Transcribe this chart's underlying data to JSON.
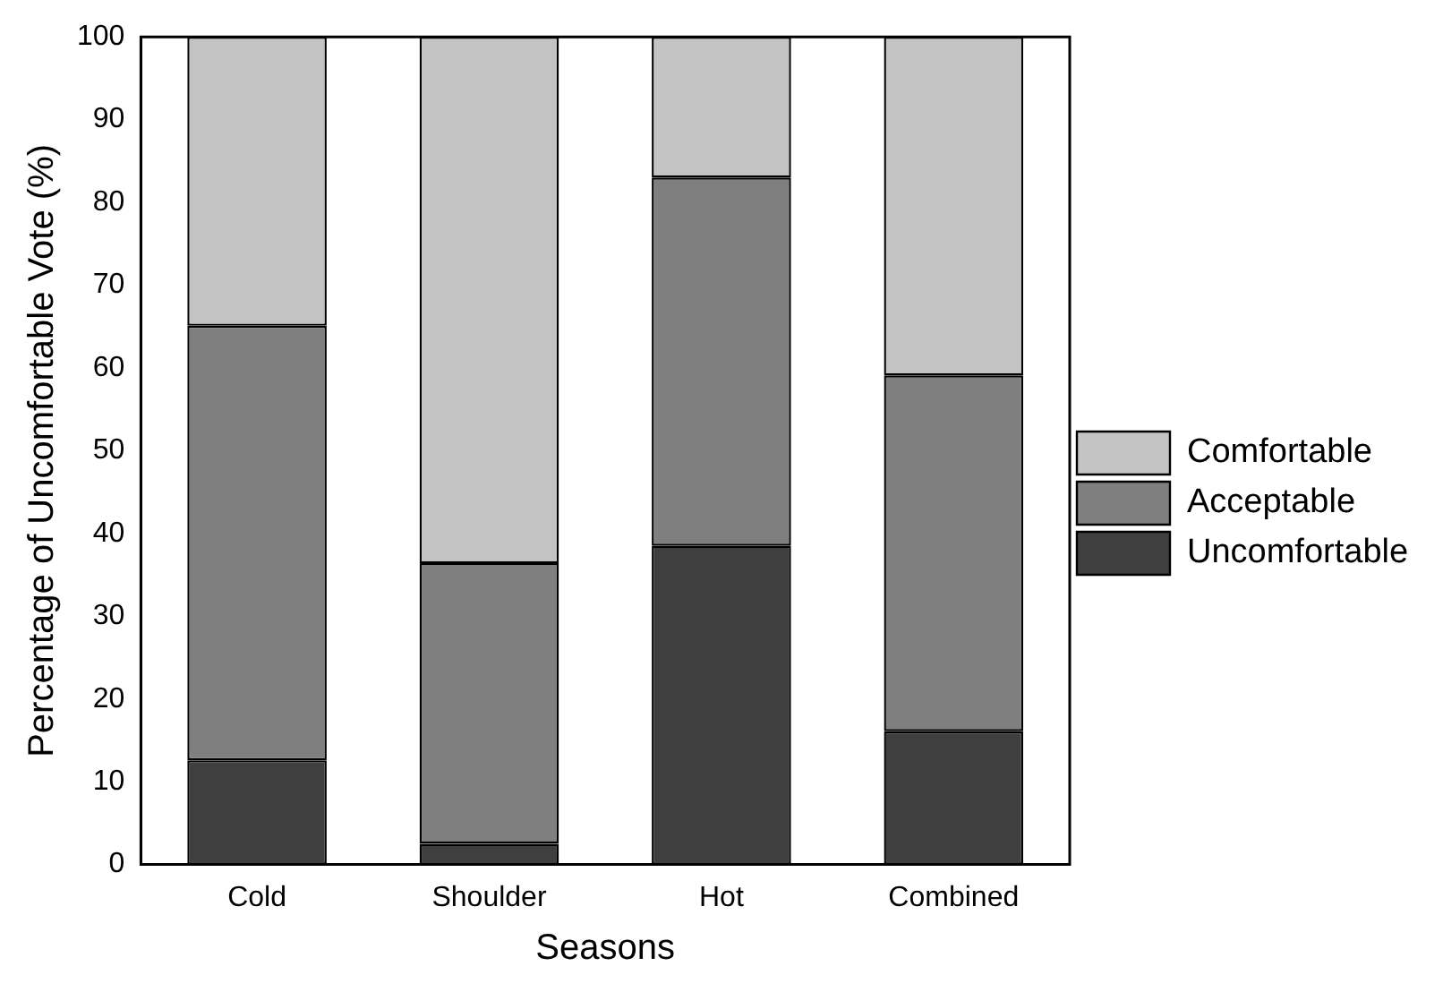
{
  "chart_data": {
    "type": "bar",
    "stacked": true,
    "xlabel": "Seasons",
    "ylabel": "Percentage of Uncomfortable Vote (%)",
    "categories": [
      "Cold",
      "Shoulder",
      "Hot",
      "Combined"
    ],
    "series": [
      {
        "name": "Uncomfortable",
        "color": "#3f3f3f",
        "values": [
          12.6,
          2.5,
          38.5,
          16.1
        ]
      },
      {
        "name": "Acceptable",
        "color": "#7f7f7f",
        "values": [
          52.5,
          33.9,
          44.5,
          43.0
        ]
      },
      {
        "name": "Comfortable",
        "color": "#c3c3c3",
        "values": [
          34.9,
          63.6,
          17.0,
          40.9
        ]
      }
    ],
    "ylim": [
      0,
      100
    ],
    "yticks": [
      0,
      10,
      20,
      30,
      40,
      50,
      60,
      70,
      80,
      90,
      100
    ],
    "grid": false,
    "legend": "right"
  }
}
